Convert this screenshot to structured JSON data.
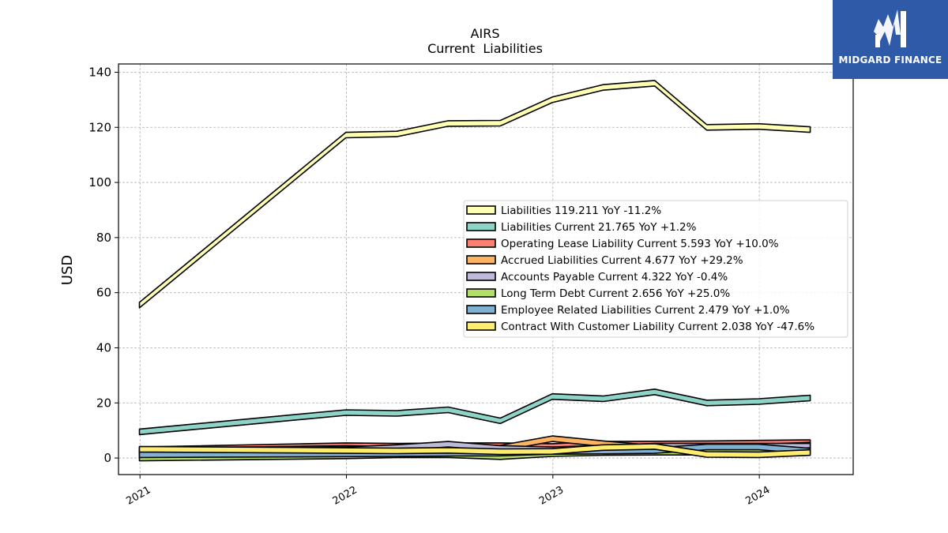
{
  "brand": {
    "name": "MIDGARD FINANCE",
    "bg_color": "#2f5aa8"
  },
  "chart_data": {
    "type": "area",
    "title": "AIRS",
    "subtitle": "Current  Liabilities",
    "xlabel": "",
    "ylabel": "USD",
    "ylim": [
      -6,
      143
    ],
    "xlim": [
      "2020-11-24",
      "2024-06-15"
    ],
    "yticks": [
      0,
      20,
      40,
      60,
      80,
      100,
      120,
      140
    ],
    "xticks": [
      "2021",
      "2022",
      "2023",
      "2024"
    ],
    "grid": true,
    "legend_position": "center-right",
    "x": [
      "2020-12-31",
      "2021-12-31",
      "2022-03-31",
      "2022-06-30",
      "2022-09-30",
      "2022-12-31",
      "2023-03-31",
      "2023-06-30",
      "2023-09-30",
      "2023-12-31",
      "2024-03-31"
    ],
    "series": [
      {
        "name": "Liabilities",
        "legend": "Liabilities  119.211 YoY -11.2%",
        "color": "#ffffb3",
        "values": [
          55.5,
          117.2,
          117.6,
          121.4,
          121.5,
          130.0,
          134.5,
          136.0,
          120.0,
          120.3,
          119.2
        ]
      },
      {
        "name": "Liabilities Current",
        "legend": "Liabilities Current  21.765 YoY +1.2%",
        "color": "#8dd3c7",
        "values": [
          9.5,
          16.5,
          16.2,
          17.5,
          13.5,
          22.3,
          21.5,
          24.0,
          20.0,
          20.5,
          21.8
        ]
      },
      {
        "name": "Operating Lease Liability Current",
        "legend": "Operating Lease Liability Current  5.593 YoY +10.0%",
        "color": "#fb8072",
        "values": [
          3.0,
          4.5,
          4.3,
          4.5,
          4.5,
          4.2,
          5.0,
          5.1,
          5.2,
          5.4,
          5.6
        ]
      },
      {
        "name": "Accrued Liabilities Current",
        "legend": "Accrued Liabilities Current  4.677 YoY +29.2%",
        "color": "#fdb462",
        "values": [
          2.5,
          3.5,
          3.2,
          3.5,
          3.6,
          7.0,
          5.2,
          3.6,
          3.8,
          4.0,
          4.7
        ]
      },
      {
        "name": "Accounts Payable Current",
        "legend": "Accounts Payable Current  4.322 YoY -0.4%",
        "color": "#bebada",
        "values": [
          2.0,
          3.0,
          3.8,
          5.0,
          3.5,
          3.0,
          3.6,
          4.3,
          4.3,
          4.3,
          4.3
        ]
      },
      {
        "name": "Long Term Debt Current",
        "legend": "Long Term Debt Current  2.656 YoY +25.0%",
        "color": "#b3de69",
        "values": [
          0.0,
          0.8,
          1.2,
          1.2,
          0.5,
          1.6,
          2.0,
          2.1,
          2.1,
          2.2,
          2.7
        ]
      },
      {
        "name": "Employee Related Liabilities Current",
        "legend": "Employee Related Liabilities Current  2.479 YoY +1.0%",
        "color": "#80b1d3",
        "values": [
          1.2,
          1.5,
          1.6,
          1.7,
          1.8,
          2.4,
          2.5,
          2.7,
          4.0,
          4.0,
          2.5
        ]
      },
      {
        "name": "Contract With Customer Liability Current",
        "legend": "Contract With Customer Liability Current  2.038 YoY -47.6%",
        "color": "#ffed6f",
        "values": [
          3.2,
          2.7,
          2.6,
          2.8,
          2.3,
          2.4,
          3.8,
          4.2,
          1.3,
          1.2,
          2.0
        ]
      }
    ]
  }
}
